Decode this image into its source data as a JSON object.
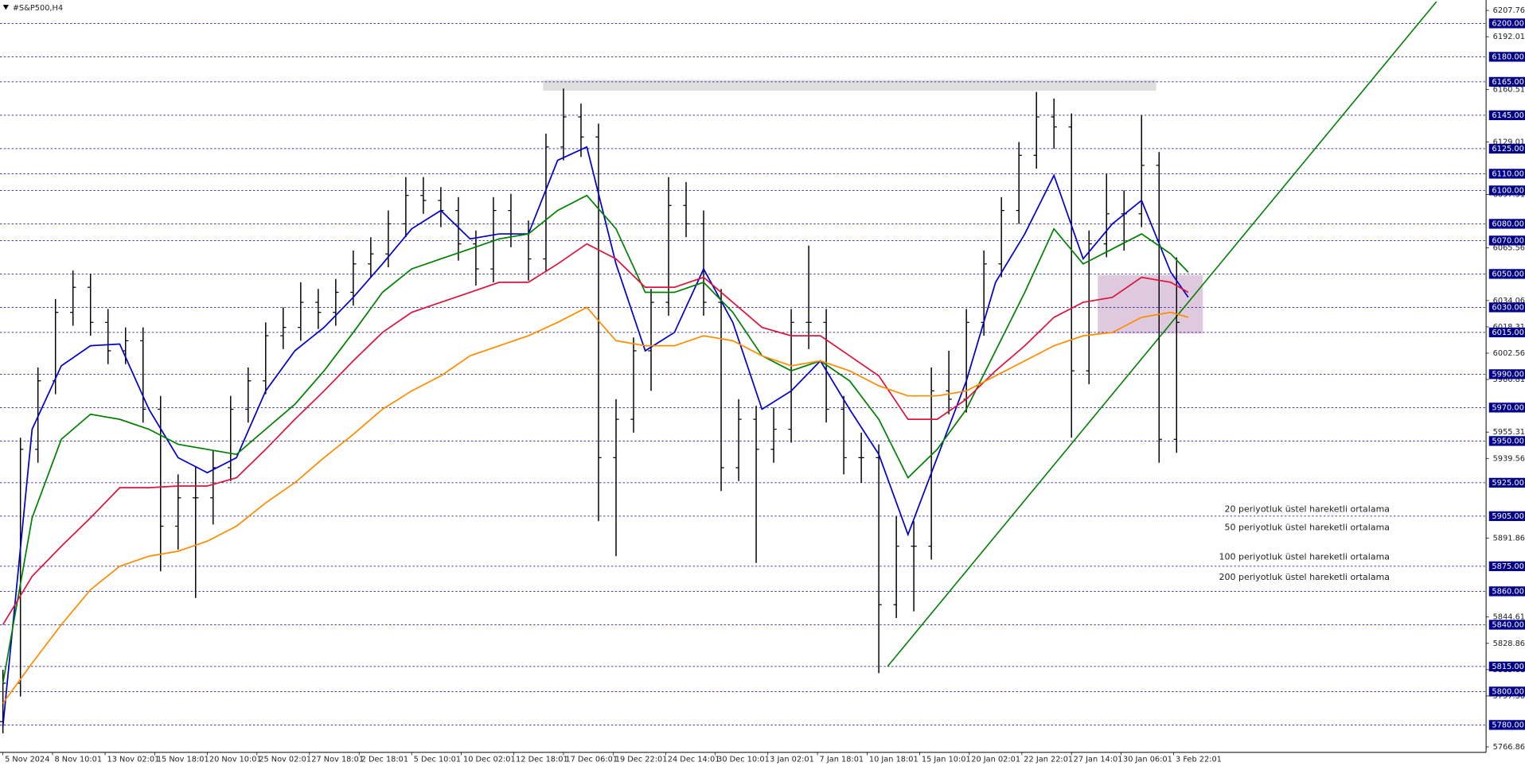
{
  "chart_data": {
    "type": "ohlc",
    "title": "#S&P500,H4",
    "xlim": [
      -1,
      508
    ],
    "ylim": [
      5763.6,
      6214
    ],
    "xticks": [
      {
        "value": 0,
        "label": "5 Nov 2024"
      },
      {
        "value": 17,
        "label": "8 Nov 10:01"
      },
      {
        "value": 35,
        "label": "13 Nov 02:01"
      },
      {
        "value": 52,
        "label": "15 Nov 18:01"
      },
      {
        "value": 70,
        "label": "20 Nov 10:01"
      },
      {
        "value": 87,
        "label": "25 Nov 02:01"
      },
      {
        "value": 105,
        "label": "27 Nov 18:01"
      },
      {
        "value": 122,
        "label": "2 Dec 18:01"
      },
      {
        "value": 140,
        "label": "5 Dec 10:01"
      },
      {
        "value": 157,
        "label": "10 Dec 02:01"
      },
      {
        "value": 175,
        "label": "12 Dec 18:01"
      },
      {
        "value": 192,
        "label": "17 Dec 06:01"
      },
      {
        "value": 209,
        "label": "19 Dec 22:01"
      },
      {
        "value": 227,
        "label": "24 Dec 14:01"
      },
      {
        "value": 244,
        "label": "30 Dec 10:01"
      },
      {
        "value": 262,
        "label": "3 Jan 02:01"
      },
      {
        "value": 279,
        "label": "7 Jan 18:01"
      },
      {
        "value": 296,
        "label": "10 Jan 18:01"
      },
      {
        "value": 314,
        "label": "15 Jan 10:01"
      },
      {
        "value": 331,
        "label": "20 Jan 02:01"
      },
      {
        "value": 349,
        "label": "22 Jan 22:01"
      },
      {
        "value": 366,
        "label": "27 Jan 14:01"
      },
      {
        "value": 383,
        "label": "30 Jan 06:01"
      },
      {
        "value": 401,
        "label": "3 Feb 22:01"
      }
    ],
    "yticks": [
      6207.76,
      6192.01,
      6160.51,
      6129.01,
      6097.51,
      6065.56,
      6034.06,
      6018.31,
      6002.56,
      5986.81,
      5955.31,
      5939.56,
      5891.86,
      5844.61,
      5828.86,
      5813.11,
      5797.36,
      5766.86
    ],
    "levels": [
      {
        "value": 6200,
        "label": "6200.00"
      },
      {
        "value": 6180,
        "label": "6180.00"
      },
      {
        "value": 6165,
        "label": "6165.00"
      },
      {
        "value": 6145,
        "label": "6145.00"
      },
      {
        "value": 6125,
        "label": "6125.00"
      },
      {
        "value": 6110,
        "label": "6110.00"
      },
      {
        "value": 6100,
        "label": "6100.00"
      },
      {
        "value": 6080,
        "label": "6080.00"
      },
      {
        "value": 6070,
        "label": "6070.00"
      },
      {
        "value": 6050,
        "label": "6050.00"
      },
      {
        "value": 6030,
        "label": "6030.00"
      },
      {
        "value": 6015,
        "label": "6015.00"
      },
      {
        "value": 5990,
        "label": "5990.00"
      },
      {
        "value": 5970,
        "label": "5970.00"
      },
      {
        "value": 5950,
        "label": "5950.00"
      },
      {
        "value": 5925,
        "label": "5925.00"
      },
      {
        "value": 5905,
        "label": "5905.00"
      },
      {
        "value": 5875,
        "label": "5875.00"
      },
      {
        "value": 5860,
        "label": "5860.00"
      },
      {
        "value": 5840,
        "label": "5840.00"
      },
      {
        "value": 5815,
        "label": "5815.00"
      },
      {
        "value": 5800,
        "label": "5800.00"
      },
      {
        "value": 5780,
        "label": "5780.00"
      }
    ],
    "level_color": "#00008b",
    "candle_color": "#000000",
    "candles": {
      "x": [
        0,
        6,
        12,
        18,
        24,
        30,
        36,
        42,
        48,
        54,
        60,
        66,
        72,
        78,
        84,
        90,
        96,
        102,
        108,
        114,
        120,
        126,
        132,
        138,
        144,
        150,
        156,
        162,
        168,
        174,
        180,
        186,
        192,
        198,
        204,
        210,
        216,
        222,
        228,
        234,
        240,
        246,
        252,
        258,
        264,
        270,
        276,
        282,
        288,
        294,
        300,
        306,
        312,
        318,
        324,
        330,
        336,
        342,
        348,
        354,
        360,
        366,
        372,
        378,
        384,
        390,
        396,
        402
      ],
      "open": [
        5782,
        5805,
        5945,
        5986,
        6027,
        6042,
        6021,
        6004,
        6010,
        5969,
        5899,
        5916,
        5916,
        5934,
        5969,
        5986,
        6013,
        6018,
        6033,
        6027,
        6039,
        6056,
        6062,
        6080,
        6097,
        6094,
        6088,
        6068,
        6053,
        6088,
        6074,
        6059,
        6126,
        6144,
        6132,
        5940,
        5963,
        6004,
        6033,
        6091,
        6080,
        6033,
        5934,
        5963,
        5945,
        5957,
        6021,
        6021,
        5969,
        5940,
        5940,
        5852,
        5887,
        5887,
        5980,
        5975,
        6021,
        6056,
        6088,
        6121,
        6144,
        6138,
        5992,
        6068,
        6086,
        6086,
        6115,
        5951
      ],
      "high": [
        5813,
        5952,
        5994,
        6035,
        6052,
        6050,
        6029,
        6018,
        6018,
        5977,
        5930,
        5935,
        5944,
        5977,
        5994,
        6021,
        6030,
        6045,
        6041,
        6047,
        6064,
        6072,
        6088,
        6108,
        6108,
        6102,
        6096,
        6076,
        6096,
        6098,
        6082,
        6134,
        6161,
        6152,
        6140,
        5975,
        6012,
        6041,
        6108,
        6105,
        6088,
        6041,
        5975,
        5971,
        5970,
        6029,
        6067,
        6029,
        5977,
        5955,
        5948,
        5905,
        5902,
        5994,
        6004,
        6029,
        6064,
        6096,
        6129,
        6159,
        6155,
        6146,
        6076,
        6110,
        6100,
        6145,
        6123,
        6060
      ],
      "low": [
        5775,
        5797,
        5937,
        5978,
        6019,
        6013,
        5996,
        5996,
        5961,
        5872,
        5885,
        5856,
        5900,
        5926,
        5961,
        5978,
        6005,
        6010,
        6017,
        6019,
        6031,
        6048,
        6054,
        6072,
        6086,
        6078,
        6058,
        6043,
        6045,
        6066,
        6046,
        6051,
        6118,
        6120,
        5902,
        5881,
        5955,
        5980,
        6025,
        6072,
        6025,
        5920,
        5926,
        5877,
        5937,
        5949,
        6005,
        5961,
        5930,
        5925,
        5811,
        5844,
        5848,
        5879,
        5966,
        5967,
        6013,
        6048,
        6080,
        6113,
        6125,
        5952,
        5984,
        6060,
        6064,
        6078,
        5937,
        5943
      ],
      "close": [
        5805,
        5945,
        5986,
        6027,
        6042,
        6021,
        6004,
        6010,
        5969,
        5899,
        5916,
        5916,
        5934,
        5969,
        5986,
        6013,
        6018,
        6033,
        6027,
        6039,
        6056,
        6062,
        6080,
        6097,
        6094,
        6088,
        6068,
        6053,
        6088,
        6074,
        6059,
        6126,
        6144,
        6132,
        5940,
        5963,
        6004,
        6033,
        6091,
        6080,
        6033,
        5934,
        5963,
        5945,
        5957,
        6021,
        6021,
        5969,
        5940,
        5940,
        5852,
        5887,
        5887,
        5980,
        5975,
        6021,
        6056,
        6088,
        6121,
        6144,
        6138,
        5992,
        6068,
        6086,
        6086,
        6115,
        5951,
        6021
      ]
    },
    "series": [
      {
        "name": "20 periyotluk üstel hareketli ortalama",
        "color": "#0000cd",
        "x": [
          0,
          10,
          20,
          30,
          40,
          50,
          60,
          70,
          80,
          90,
          100,
          110,
          120,
          130,
          140,
          150,
          160,
          170,
          180,
          190,
          200,
          210,
          220,
          230,
          240,
          250,
          260,
          270,
          280,
          290,
          300,
          310,
          320,
          330,
          340,
          350,
          360,
          370,
          380,
          390,
          400,
          406
        ],
        "values": [
          5779,
          5957,
          5995,
          6007,
          6008,
          5969,
          5940,
          5931,
          5940,
          5980,
          6004,
          6018,
          6036,
          6056,
          6077,
          6088,
          6071,
          6074,
          6074,
          6118,
          6126,
          6056,
          6004,
          6015,
          6053,
          6021,
          5969,
          5980,
          5998,
          5969,
          5942,
          5894,
          5940,
          5986,
          6045,
          6074,
          6109,
          6059,
          6080,
          6094,
          6051,
          6036
        ]
      },
      {
        "name": "50 periyotluk üstel hareketli ortalama",
        "color": "#008000",
        "x": [
          0,
          10,
          20,
          30,
          40,
          50,
          60,
          70,
          80,
          90,
          100,
          110,
          120,
          130,
          140,
          150,
          160,
          170,
          180,
          190,
          200,
          210,
          220,
          230,
          240,
          250,
          260,
          270,
          280,
          290,
          300,
          310,
          320,
          330,
          340,
          350,
          360,
          370,
          380,
          390,
          400,
          406
        ],
        "values": [
          5805,
          5904,
          5951,
          5966,
          5963,
          5957,
          5948,
          5945,
          5942,
          5957,
          5972,
          5992,
          6015,
          6039,
          6053,
          6059,
          6065,
          6071,
          6074,
          6088,
          6097,
          6077,
          6039,
          6039,
          6045,
          6027,
          6001,
          5992,
          5998,
          5986,
          5963,
          5928,
          5945,
          5969,
          6004,
          6039,
          6077,
          6056,
          6065,
          6074,
          6062,
          6051
        ]
      },
      {
        "name": "100 periyotluk üstel hareketli ortalama",
        "color": "#dc143c",
        "x": [
          0,
          10,
          20,
          30,
          40,
          50,
          60,
          70,
          80,
          90,
          100,
          110,
          120,
          130,
          140,
          150,
          160,
          170,
          180,
          190,
          200,
          210,
          220,
          230,
          240,
          250,
          260,
          270,
          280,
          290,
          300,
          310,
          320,
          330,
          340,
          350,
          360,
          370,
          380,
          390,
          400,
          406
        ],
        "values": [
          5840,
          5869,
          5887,
          5904,
          5922,
          5922,
          5923,
          5923,
          5928,
          5945,
          5963,
          5980,
          5998,
          6015,
          6027,
          6033,
          6039,
          6045,
          6045,
          6056,
          6068,
          6059,
          6042,
          6042,
          6048,
          6033,
          6018,
          6013,
          6013,
          6001,
          5989,
          5963,
          5963,
          5975,
          5992,
          6007,
          6024,
          6033,
          6036,
          6048,
          6045,
          6039
        ]
      },
      {
        "name": "200 periyotluk üstel hareketli ortalama",
        "color": "#ff8c00",
        "x": [
          0,
          10,
          20,
          30,
          40,
          50,
          60,
          70,
          80,
          90,
          100,
          110,
          120,
          130,
          140,
          150,
          160,
          170,
          180,
          190,
          200,
          210,
          220,
          230,
          240,
          250,
          260,
          270,
          280,
          290,
          300,
          310,
          320,
          330,
          340,
          350,
          360,
          370,
          380,
          390,
          400,
          406
        ],
        "values": [
          5793,
          5817,
          5840,
          5861,
          5875,
          5881,
          5884,
          5890,
          5899,
          5913,
          5925,
          5940,
          5954,
          5969,
          5980,
          5989,
          6001,
          6007,
          6013,
          6021,
          6030,
          6010,
          6007,
          6007,
          6013,
          6010,
          6001,
          5995,
          5998,
          5992,
          5983,
          5977,
          5977,
          5980,
          5989,
          5998,
          6007,
          6013,
          6015,
          6024,
          6027,
          6024
        ]
      }
    ],
    "legend": "right",
    "zones": [
      {
        "x": [
          185,
          395
        ],
        "y": [
          6159.7,
          6166.1
        ],
        "color": "#d9d9d9"
      },
      {
        "x": [
          375,
          411
        ],
        "y": [
          6014.3,
          6049.3
        ],
        "color": "#d8bfd8"
      }
    ],
    "trendline": {
      "x": [
        303,
        491
      ],
      "y": [
        5815,
        6213
      ],
      "color": "#008000"
    }
  }
}
